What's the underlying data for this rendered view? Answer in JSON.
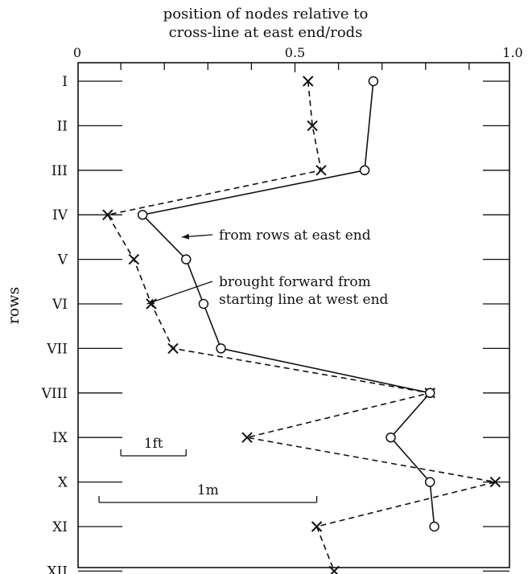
{
  "chart_data": {
    "type": "line",
    "title": "",
    "xlabel_lines": [
      "position of nodes relative to",
      "cross-line at east end/rods"
    ],
    "ylabel": "rows",
    "xlim": [
      0,
      1.0
    ],
    "x_tick_labels": [
      {
        "value": 0,
        "label": "0"
      },
      {
        "value": 0.5,
        "label": "0.5"
      },
      {
        "value": 1.0,
        "label": "1.0"
      }
    ],
    "categories": [
      "I",
      "II",
      "III",
      "IV",
      "V",
      "VI",
      "VII",
      "VIII",
      "IX",
      "X",
      "XI",
      "XII"
    ],
    "series": [
      {
        "name": "from rows at east end",
        "marker": "circle",
        "line": "solid",
        "points": [
          {
            "row": "I",
            "x": 0.68
          },
          {
            "row": "III",
            "x": 0.66
          },
          {
            "row": "IV",
            "x": 0.15
          },
          {
            "row": "V",
            "x": 0.25
          },
          {
            "row": "VI",
            "x": 0.29
          },
          {
            "row": "VII",
            "x": 0.33
          },
          {
            "row": "VIII",
            "x": 0.81
          },
          {
            "row": "IX",
            "x": 0.72
          },
          {
            "row": "X",
            "x": 0.81
          },
          {
            "row": "XI",
            "x": 0.82
          }
        ]
      },
      {
        "name": "brought forward from starting line at west end",
        "marker": "x",
        "line": "dashed",
        "points": [
          {
            "row": "I",
            "x": 0.53
          },
          {
            "row": "II",
            "x": 0.54
          },
          {
            "row": "III",
            "x": 0.56
          },
          {
            "row": "IV",
            "x": 0.07
          },
          {
            "row": "V",
            "x": 0.13
          },
          {
            "row": "VI",
            "x": 0.17
          },
          {
            "row": "VII",
            "x": 0.22
          },
          {
            "row": "VIII",
            "x": 0.81
          },
          {
            "row": "IX",
            "x": 0.39
          },
          {
            "row": "X",
            "x": 0.96
          },
          {
            "row": "XI",
            "x": 0.55
          },
          {
            "row": "XII",
            "x": 0.59
          }
        ]
      }
    ],
    "annotations": [
      {
        "lines": [
          "from rows at east end"
        ],
        "target": {
          "row": "IV.5",
          "x": 0.24
        }
      },
      {
        "lines": [
          "brought forward from",
          "starting line at west end"
        ],
        "target": {
          "row": "VI",
          "x": 0.16
        }
      }
    ],
    "scale_bars": [
      {
        "label": "1ft",
        "from": 0.1,
        "to": 0.25
      },
      {
        "label": "1m",
        "from": 0.05,
        "to": 0.55
      }
    ]
  }
}
